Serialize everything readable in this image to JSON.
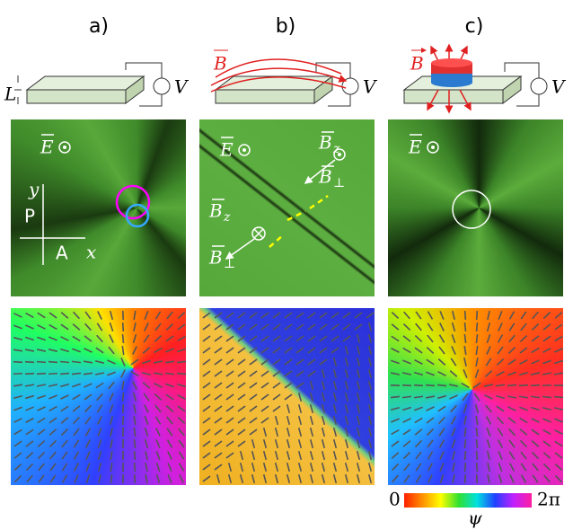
{
  "panels": [
    {
      "label": "a)",
      "thickness": "L",
      "voltage": "V",
      "field": "E",
      "axes": {
        "y": "y",
        "x": "x",
        "polarizer": "P",
        "analyzer": "A"
      }
    },
    {
      "label": "b)",
      "magnet": "B",
      "voltage": "V",
      "field": "E",
      "bz": [
        "B",
        "z"
      ],
      "bperp": [
        "B",
        "⊥"
      ],
      "bz2": [
        "B",
        "z"
      ],
      "bperp2": [
        "B",
        "⊥"
      ]
    },
    {
      "label": "c)",
      "magnet": "B",
      "voltage": "V",
      "field": "E"
    }
  ],
  "colorbar": {
    "min": "0",
    "max": "2π",
    "symbol": "ψ"
  }
}
